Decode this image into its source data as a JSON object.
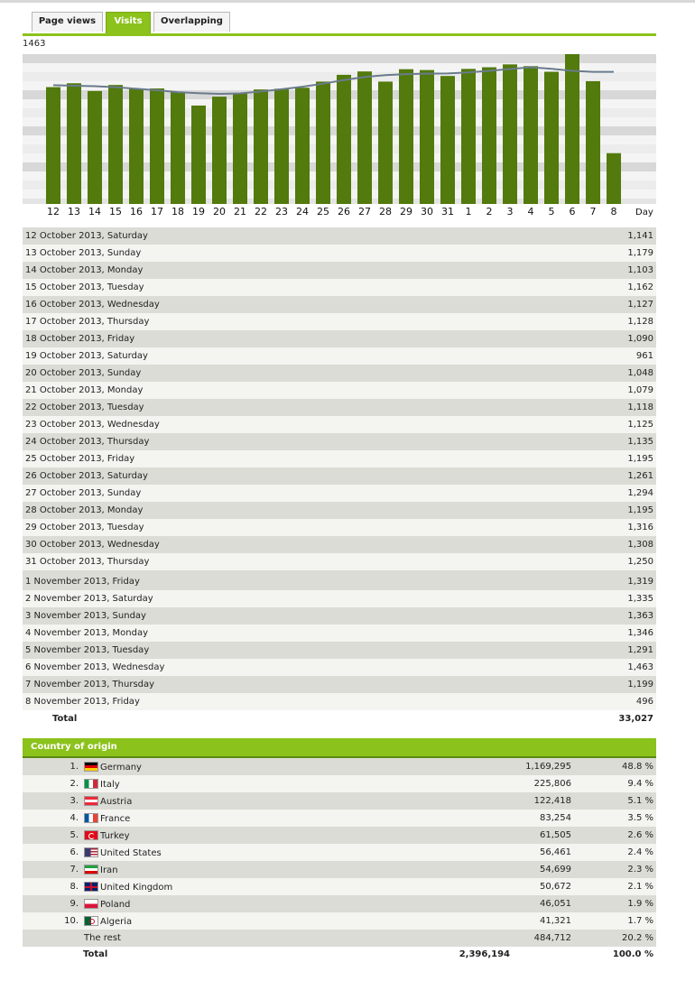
{
  "tabs": [
    {
      "label": "Page views",
      "active": false
    },
    {
      "label": "Visits",
      "active": true
    },
    {
      "label": "Overlapping",
      "active": false
    }
  ],
  "colors": {
    "accent": "#8cc21c",
    "bar": "#527a0c",
    "trend": "#6a7b8c"
  },
  "chart_data": {
    "type": "bar",
    "ymax_label": "1463",
    "ylim": [
      0,
      1463
    ],
    "xlabel": "Day",
    "categories": [
      "12",
      "13",
      "14",
      "15",
      "16",
      "17",
      "18",
      "19",
      "20",
      "21",
      "22",
      "23",
      "24",
      "25",
      "26",
      "27",
      "28",
      "29",
      "30",
      "31",
      "1",
      "2",
      "3",
      "4",
      "5",
      "6",
      "7",
      "8"
    ],
    "values": [
      1141,
      1179,
      1103,
      1162,
      1127,
      1128,
      1090,
      961,
      1048,
      1079,
      1118,
      1125,
      1135,
      1195,
      1261,
      1294,
      1195,
      1316,
      1308,
      1250,
      1319,
      1335,
      1363,
      1346,
      1291,
      1463,
      1199,
      496
    ],
    "trend_line": [
      1160,
      1155,
      1150,
      1140,
      1125,
      1110,
      1092,
      1082,
      1075,
      1080,
      1098,
      1120,
      1145,
      1175,
      1210,
      1240,
      1258,
      1268,
      1272,
      1275,
      1285,
      1300,
      1318,
      1335,
      1320,
      1300,
      1290,
      1290
    ],
    "grid": true
  },
  "daily": [
    {
      "date": "12 October 2013, Saturday",
      "value": "1,141"
    },
    {
      "date": "13 October 2013, Sunday",
      "value": "1,179"
    },
    {
      "date": "14 October 2013, Monday",
      "value": "1,103"
    },
    {
      "date": "15 October 2013, Tuesday",
      "value": "1,162"
    },
    {
      "date": "16 October 2013, Wednesday",
      "value": "1,127"
    },
    {
      "date": "17 October 2013, Thursday",
      "value": "1,128"
    },
    {
      "date": "18 October 2013, Friday",
      "value": "1,090"
    },
    {
      "date": "19 October 2013, Saturday",
      "value": "961"
    },
    {
      "date": "20 October 2013, Sunday",
      "value": "1,048"
    },
    {
      "date": "21 October 2013, Monday",
      "value": "1,079"
    },
    {
      "date": "22 October 2013, Tuesday",
      "value": "1,118"
    },
    {
      "date": "23 October 2013, Wednesday",
      "value": "1,125"
    },
    {
      "date": "24 October 2013, Thursday",
      "value": "1,135"
    },
    {
      "date": "25 October 2013, Friday",
      "value": "1,195"
    },
    {
      "date": "26 October 2013, Saturday",
      "value": "1,261"
    },
    {
      "date": "27 October 2013, Sunday",
      "value": "1,294"
    },
    {
      "date": "28 October 2013, Monday",
      "value": "1,195"
    },
    {
      "date": "29 October 2013, Tuesday",
      "value": "1,316"
    },
    {
      "date": "30 October 2013, Wednesday",
      "value": "1,308"
    },
    {
      "date": "31 October 2013, Thursday",
      "value": "1,250"
    },
    {
      "date": "1 November 2013, Friday",
      "value": "1,319"
    },
    {
      "date": "2 November 2013, Saturday",
      "value": "1,335"
    },
    {
      "date": "3 November 2013, Sunday",
      "value": "1,363"
    },
    {
      "date": "4 November 2013, Monday",
      "value": "1,346"
    },
    {
      "date": "5 November 2013, Tuesday",
      "value": "1,291"
    },
    {
      "date": "6 November 2013, Wednesday",
      "value": "1,463"
    },
    {
      "date": "7 November 2013, Thursday",
      "value": "1,199"
    },
    {
      "date": "8 November 2013, Friday",
      "value": "496"
    }
  ],
  "daily_total": {
    "label": "Total",
    "value": "33,027"
  },
  "countries": {
    "heading": "Country of origin",
    "rows": [
      {
        "rank": "1.",
        "flag": "flag-germany-icon",
        "flagclass": "fl-de",
        "name": "Germany",
        "count": "1,169,295",
        "pct": "48.8 %"
      },
      {
        "rank": "2.",
        "flag": "flag-italy-icon",
        "flagclass": "fl-it",
        "name": "Italy",
        "count": "225,806",
        "pct": "9.4 %"
      },
      {
        "rank": "3.",
        "flag": "flag-austria-icon",
        "flagclass": "fl-at",
        "name": "Austria",
        "count": "122,418",
        "pct": "5.1 %"
      },
      {
        "rank": "4.",
        "flag": "flag-france-icon",
        "flagclass": "fl-fr",
        "name": "France",
        "count": "83,254",
        "pct": "3.5 %"
      },
      {
        "rank": "5.",
        "flag": "flag-turkey-icon",
        "flagclass": "fl-tr",
        "name": "Turkey",
        "count": "61,505",
        "pct": "2.6 %"
      },
      {
        "rank": "6.",
        "flag": "flag-united-states-icon",
        "flagclass": "fl-us",
        "name": "United States",
        "count": "56,461",
        "pct": "2.4 %"
      },
      {
        "rank": "7.",
        "flag": "flag-iran-icon",
        "flagclass": "fl-ir",
        "name": "Iran",
        "count": "54,699",
        "pct": "2.3 %"
      },
      {
        "rank": "8.",
        "flag": "flag-united-kingdom-icon",
        "flagclass": "fl-gb",
        "name": "United Kingdom",
        "count": "50,672",
        "pct": "2.1 %"
      },
      {
        "rank": "9.",
        "flag": "flag-poland-icon",
        "flagclass": "fl-pl",
        "name": "Poland",
        "count": "46,051",
        "pct": "1.9 %"
      },
      {
        "rank": "10.",
        "flag": "flag-algeria-icon",
        "flagclass": "fl-dz",
        "name": "Algeria",
        "count": "41,321",
        "pct": "1.7 %"
      }
    ],
    "rest": {
      "name": "The rest",
      "count": "484,712",
      "pct": "20.2 %"
    },
    "total": {
      "label": "Total",
      "count": "2,396,194",
      "pct": "100.0 %"
    }
  }
}
